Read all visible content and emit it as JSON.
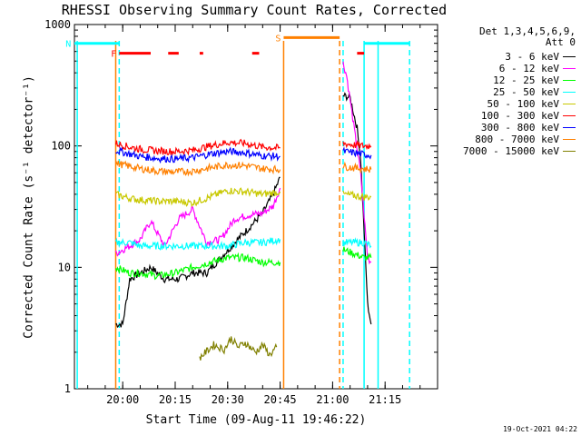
{
  "chart_data": {
    "type": "line",
    "title": "RHESSI Observing Summary Count Rates, Corrected",
    "xlabel": "Start Time (09-Aug-11 19:46:22)",
    "ylabel": "Corrected Count Rate (s⁻¹ detector⁻¹)",
    "yscale": "log",
    "ylim": [
      1,
      1000
    ],
    "xlim_minutes": [
      19.77,
      21.5
    ],
    "x_ticks": [
      "20:00",
      "20:15",
      "20:30",
      "20:45",
      "21:00",
      "21:15"
    ],
    "y_ticks": [
      "1",
      "10",
      "100",
      "1000"
    ],
    "detectors_label": "Det 1,3,4,5,6,9,",
    "attenuator_label": "Att 0",
    "series": [
      {
        "name": "3 - 6 keV",
        "color": "#000000",
        "x": [
          "19:58",
          "20:00",
          "20:02",
          "20:05",
          "20:08",
          "20:12",
          "20:16",
          "20:20",
          "20:24",
          "20:28",
          "20:32",
          "20:36",
          "20:40",
          "20:43",
          "20:45",
          "21:03",
          "21:05",
          "21:07",
          "21:08",
          "21:10",
          "21:11"
        ],
        "values": [
          3.4,
          3.4,
          8,
          9,
          10,
          8,
          8,
          9,
          9,
          12,
          16,
          21,
          28,
          40,
          55,
          260,
          250,
          140,
          80,
          5,
          3.4
        ]
      },
      {
        "name": "6 - 12 keV",
        "color": "#ff00ff",
        "x": [
          "19:58",
          "20:02",
          "20:05",
          "20:08",
          "20:12",
          "20:16",
          "20:20",
          "20:24",
          "20:28",
          "20:32",
          "20:36",
          "20:40",
          "20:43",
          "20:45",
          "21:03",
          "21:04",
          "21:06",
          "21:08",
          "21:10",
          "21:11"
        ],
        "values": [
          13,
          15,
          17,
          24,
          15,
          25,
          30,
          16,
          17,
          25,
          27,
          28,
          32,
          45,
          480,
          380,
          150,
          60,
          12,
          11
        ]
      },
      {
        "name": "12 - 25 keV",
        "color": "#00ff00",
        "x": [
          "19:58",
          "20:02",
          "20:05",
          "20:10",
          "20:15",
          "20:20",
          "20:25",
          "20:30",
          "20:35",
          "20:40",
          "20:45",
          "21:03",
          "21:06",
          "21:09",
          "21:11"
        ],
        "values": [
          10,
          9,
          9,
          8.5,
          9,
          10,
          11,
          12,
          12,
          11,
          11,
          14,
          13,
          12,
          12
        ]
      },
      {
        "name": "25 - 50 keV",
        "color": "#00ffff",
        "x": [
          "19:58",
          "20:02",
          "20:05",
          "20:10",
          "20:15",
          "20:20",
          "20:25",
          "20:30",
          "20:35",
          "20:40",
          "20:45",
          "21:03",
          "21:06",
          "21:09",
          "21:11"
        ],
        "values": [
          16,
          16,
          15,
          15,
          15,
          15,
          15,
          15,
          16,
          16,
          17,
          16,
          16,
          16,
          15
        ]
      },
      {
        "name": "50 - 100 keV",
        "color": "#c8c800",
        "x": [
          "19:58",
          "20:02",
          "20:05",
          "20:10",
          "20:15",
          "20:20",
          "20:25",
          "20:30",
          "20:35",
          "20:40",
          "20:45",
          "21:03",
          "21:06",
          "21:09",
          "21:11"
        ],
        "values": [
          40,
          37,
          36,
          35,
          35,
          34,
          38,
          43,
          42,
          40,
          42,
          40,
          39,
          38,
          38
        ]
      },
      {
        "name": "100 - 300 keV",
        "color": "#ff0000",
        "x": [
          "19:58",
          "20:02",
          "20:05",
          "20:10",
          "20:15",
          "20:20",
          "20:25",
          "20:30",
          "20:35",
          "20:40",
          "20:45",
          "21:03",
          "21:06",
          "21:09",
          "21:11"
        ],
        "values": [
          105,
          98,
          94,
          91,
          90,
          92,
          100,
          107,
          105,
          98,
          96,
          105,
          102,
          100,
          100
        ]
      },
      {
        "name": "300 - 800 keV",
        "color": "#0000ff",
        "x": [
          "19:58",
          "20:02",
          "20:05",
          "20:10",
          "20:15",
          "20:20",
          "20:25",
          "20:30",
          "20:35",
          "20:40",
          "20:45",
          "21:03",
          "21:06",
          "21:09",
          "21:11"
        ],
        "values": [
          92,
          86,
          82,
          79,
          78,
          80,
          86,
          90,
          88,
          83,
          82,
          90,
          88,
          85,
          84
        ]
      },
      {
        "name": "800 - 7000 keV",
        "color": "#ff8000",
        "x": [
          "19:58",
          "20:02",
          "20:05",
          "20:10",
          "20:15",
          "20:20",
          "20:25",
          "20:30",
          "20:35",
          "20:40",
          "20:45",
          "21:03",
          "21:06",
          "21:09",
          "21:11"
        ],
        "values": [
          72,
          68,
          65,
          62,
          61,
          62,
          66,
          70,
          69,
          65,
          64,
          68,
          66,
          65,
          64
        ]
      },
      {
        "name": "7000 - 15000 keV",
        "color": "#808000",
        "x": [
          "20:22",
          "20:26",
          "20:29",
          "20:31",
          "20:33",
          "20:35",
          "20:38",
          "20:40",
          "20:42",
          "20:44"
        ],
        "values": [
          1.8,
          2.3,
          2.1,
          2.6,
          2.2,
          2.4,
          2.0,
          2.3,
          1.9,
          2.2
        ]
      }
    ],
    "orbit_flags": [
      {
        "color": "#00ffff",
        "label": "N",
        "segments": [
          [
            "19:46",
            "19:59"
          ]
        ],
        "level": 700
      },
      {
        "color": "#ff0000",
        "label": "F",
        "segments": [
          [
            "19:59",
            "20:08"
          ],
          [
            "20:13",
            "20:16"
          ],
          [
            "20:22",
            "20:23"
          ],
          [
            "20:37",
            "20:39"
          ],
          [
            "21:07",
            "21:09"
          ]
        ],
        "level": 580
      },
      {
        "color": "#ff8000",
        "label": "S",
        "segments": [
          [
            "20:46",
            "21:02"
          ]
        ],
        "level": 780
      },
      {
        "color": "#00ffff",
        "label": "",
        "segments": [
          [
            "21:09",
            "21:22"
          ]
        ],
        "level": 700
      }
    ],
    "vertical_markers": [
      {
        "color": "#00ffff",
        "x": "19:47",
        "style": "solid"
      },
      {
        "color": "#ff8000",
        "x": "19:58",
        "style": "solid"
      },
      {
        "color": "#00ffff",
        "x": "19:59",
        "style": "dashed"
      },
      {
        "color": "#ff8000",
        "x": "20:46",
        "style": "solid"
      },
      {
        "color": "#ff8000",
        "x": "21:02",
        "style": "dashed"
      },
      {
        "color": "#00ffff",
        "x": "21:03",
        "style": "dashed"
      },
      {
        "color": "#00ffff",
        "x": "21:09",
        "style": "solid"
      },
      {
        "color": "#00ffff",
        "x": "21:13",
        "style": "solid"
      },
      {
        "color": "#00ffff",
        "x": "21:22",
        "style": "dashed"
      }
    ]
  },
  "timestamp": "19-Oct-2021 04:22"
}
